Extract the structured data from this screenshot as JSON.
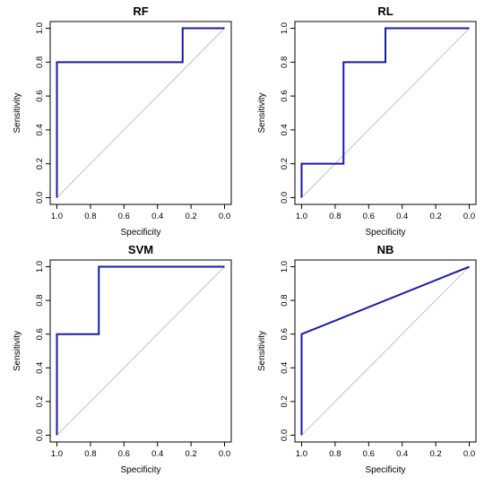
{
  "chart_data": [
    {
      "type": "line",
      "title": "RF",
      "xlabel": "Specificity",
      "ylabel": "Sensitivity",
      "xlim": [
        1.0,
        0.0
      ],
      "ylim": [
        0.0,
        1.0
      ],
      "x_reversed": true,
      "xticks": [
        "1.0",
        "0.8",
        "0.6",
        "0.4",
        "0.2",
        "0.0"
      ],
      "yticks": [
        "0.0",
        "0.2",
        "0.4",
        "0.6",
        "0.8",
        "1.0"
      ],
      "grid": false,
      "reference_line": "diagonal",
      "series": [
        {
          "x": [
            1.0,
            1.0,
            0.25,
            0.25,
            0.0
          ],
          "y": [
            0.0,
            0.8,
            0.8,
            1.0,
            1.0
          ],
          "color": "#1a1aa6"
        }
      ]
    },
    {
      "type": "line",
      "title": "RL",
      "xlabel": "Specificity",
      "ylabel": "Sensitivity",
      "xlim": [
        1.0,
        0.0
      ],
      "ylim": [
        0.0,
        1.0
      ],
      "x_reversed": true,
      "xticks": [
        "1.0",
        "0.8",
        "0.6",
        "0.4",
        "0.2",
        "0.0"
      ],
      "yticks": [
        "0.0",
        "0.2",
        "0.4",
        "0.6",
        "0.8",
        "1.0"
      ],
      "grid": false,
      "reference_line": "diagonal",
      "series": [
        {
          "x": [
            1.0,
            1.0,
            0.75,
            0.75,
            0.5,
            0.5,
            0.0
          ],
          "y": [
            0.0,
            0.2,
            0.2,
            0.8,
            0.8,
            1.0,
            1.0
          ],
          "color": "#1a1aa6"
        }
      ]
    },
    {
      "type": "line",
      "title": "SVM",
      "xlabel": "Specificity",
      "ylabel": "Sensitivity",
      "xlim": [
        1.0,
        0.0
      ],
      "ylim": [
        0.0,
        1.0
      ],
      "x_reversed": true,
      "xticks": [
        "1.0",
        "0.8",
        "0.6",
        "0.4",
        "0.2",
        "0.0"
      ],
      "yticks": [
        "0.0",
        "0.2",
        "0.4",
        "0.6",
        "0.8",
        "1.0"
      ],
      "grid": false,
      "reference_line": "diagonal",
      "series": [
        {
          "x": [
            1.0,
            1.0,
            0.75,
            0.75,
            0.0
          ],
          "y": [
            0.0,
            0.6,
            0.6,
            1.0,
            1.0
          ],
          "color": "#1a1aa6"
        }
      ]
    },
    {
      "type": "line",
      "title": "NB",
      "xlabel": "Specificity",
      "ylabel": "Sensitivity",
      "xlim": [
        1.0,
        0.0
      ],
      "ylim": [
        0.0,
        1.0
      ],
      "x_reversed": true,
      "xticks": [
        "1.0",
        "0.8",
        "0.6",
        "0.4",
        "0.2",
        "0.0"
      ],
      "yticks": [
        "0.0",
        "0.2",
        "0.4",
        "0.6",
        "0.8",
        "1.0"
      ],
      "grid": false,
      "reference_line": "diagonal",
      "series": [
        {
          "x": [
            1.0,
            1.0,
            0.0
          ],
          "y": [
            0.0,
            0.6,
            1.0
          ],
          "color": "#1a1aa6"
        }
      ]
    }
  ],
  "colors": {
    "roc_curve": "#1a1aa6",
    "reference_diagonal": "#b4b4b4",
    "axes": "#000000"
  }
}
